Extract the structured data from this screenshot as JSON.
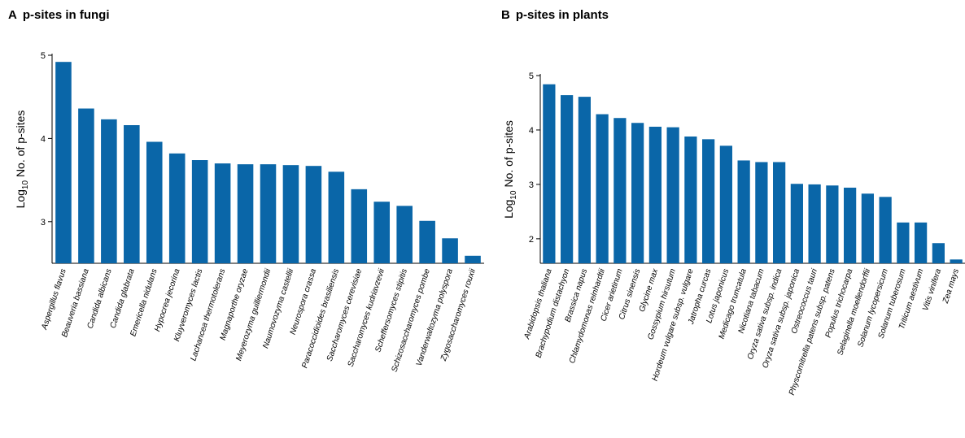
{
  "chart_data": [
    {
      "type": "bar",
      "panel_letter": "A",
      "title": "p-sites in fungi",
      "ylabel_prefix": "Log",
      "ylabel_sub": "10",
      "ylabel_suffix": " No. of p-sites",
      "xlabel": "",
      "ylim": [
        2.5,
        5
      ],
      "yticks": [
        3,
        4,
        5
      ],
      "grid": false,
      "color": "#0a66a8",
      "categories": [
        "Aspergillus flavus",
        "Beauveria bassiana",
        "Candida albicans",
        "Candida glabrata",
        "Emericella nidulans",
        "Hypocrea jecorina",
        "Kluyveromyces lactis",
        "Lachancea thermotolerans",
        "Magnaporthe oryzae",
        "Meyerozyma guilliermondii",
        "Naumovozyma castellii",
        "Neurospora crassa",
        "Paracoccidioides brasiliensis",
        "Saccharomyces cerevisiae",
        "Saccharomyces kudriavzevii",
        "Scheffersomyces stipitis",
        "Schizosaccharomyces pombe",
        "Vanderwaltozyma polyspora",
        "Zygosaccharomyces rouxii"
      ],
      "values": [
        4.92,
        4.36,
        4.23,
        4.16,
        3.96,
        3.82,
        3.74,
        3.7,
        3.69,
        3.69,
        3.68,
        3.67,
        3.6,
        3.39,
        3.24,
        3.19,
        3.01,
        2.8,
        2.59
      ]
    },
    {
      "type": "bar",
      "panel_letter": "B",
      "title": "p-sites in plants",
      "ylabel_prefix": "Log",
      "ylabel_sub": "10",
      "ylabel_suffix": " No. of p-sites",
      "xlabel": "",
      "ylim": [
        1.55,
        5
      ],
      "yticks": [
        2,
        3,
        4,
        5
      ],
      "grid": false,
      "color": "#0a66a8",
      "categories": [
        "Arabidopsis thaliana",
        "Brachypodium distachyon",
        "Brassica napus",
        "Chlamydomonas reinhardtii",
        "Cicer arietinum",
        "Citrus sinensis",
        "Glycine max",
        "Gossypium hirsutum",
        "Hordeum vulgare subsp. vulgare",
        "Jatropha curcas",
        "Lotus japonicus",
        "Medicago truncatula",
        "Nicotiana tabacum",
        "Oryza sativa subsp. indica",
        "Oryza sativa subsp. japonica",
        "Ostreococcus tauri",
        "Physcomitrella patens subsp. patens",
        "Populus trichocarpa",
        "Selaginella moellendorffii",
        "Solanum lycopersicum",
        "Solanum tuberosum",
        "Triticum aestivum",
        "Vitis vinifera",
        "Zea mays"
      ],
      "values": [
        4.84,
        4.64,
        4.61,
        4.29,
        4.22,
        4.13,
        4.06,
        4.05,
        3.88,
        3.83,
        3.71,
        3.44,
        3.41,
        3.41,
        3.01,
        3.0,
        2.98,
        2.94,
        2.83,
        2.77,
        2.3,
        2.3,
        1.92,
        1.62
      ]
    }
  ]
}
